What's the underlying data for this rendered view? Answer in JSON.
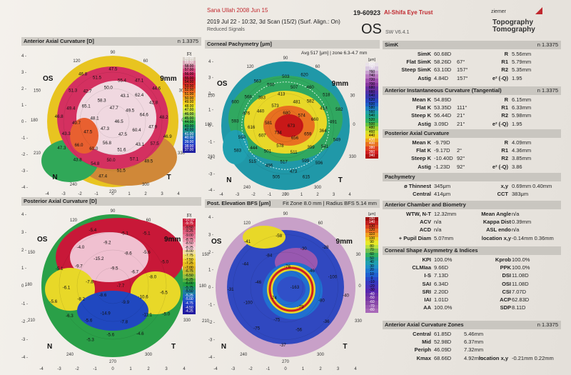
{
  "header": {
    "patient": "Sana Ullah 2008 Jun 15",
    "exam_id": "19-60923",
    "clinic": "Al-Shifa Eye Trust",
    "exam_datetime": "2019 Jul 22 - 10:32, 3d Scan (15/2) (Surf. Align.: On)",
    "signals": "Reduced Signals",
    "eye": "OS",
    "sw_version": "SW V6.4.1",
    "brand": "ziemer",
    "product_line1": "Topography",
    "product_line2": "Tomography"
  },
  "maps": {
    "ant_axial": {
      "title": "Anterior Axial Curvature [D]",
      "right": "n 1.3375",
      "eye": "OS",
      "size": "9mm",
      "scale_unit": "[D]",
      "scale": [
        "60.00",
        "59.00",
        "58.00",
        "57.00",
        "56.00",
        "55.00",
        "54.00",
        "53.00",
        "52.00",
        "51.00",
        "50.00",
        "49.00",
        "48.00",
        "47.00",
        "46.00",
        "45.00",
        "44.00",
        "43.00",
        "42.00",
        "41.00",
        "40.00",
        "39.00",
        "38.00",
        "37.00"
      ],
      "values": [
        "46.5",
        "47.3",
        "47.7",
        "47.5",
        "48.1",
        "49.5",
        "56.8",
        "58.3",
        "60.4",
        "47.5",
        "43.1",
        "51.6",
        "65.1",
        "64.6",
        "60.0",
        "50.0",
        "43.1",
        "49.7",
        "62.4",
        "50.0",
        "42.7",
        "47.9",
        "66.0",
        "55.4",
        "57.1",
        "49.4",
        "42.8",
        "54.8",
        "51.5",
        "57.5",
        "43.3",
        "47.1",
        "51.5",
        "51.3",
        "48.2",
        "43.8",
        "47.5",
        "49.5",
        "46.8",
        "44.6",
        "47.4",
        "46.8",
        "46.9",
        "47.3"
      ]
    },
    "pachy": {
      "title": "Corneal Pachymetry [μm]",
      "mid": "Avg 517 [μm] | zone 6.3-4.7 mm",
      "eye": "OS",
      "size": "9mm",
      "scale_unit": "[μm]",
      "scale": [
        "800",
        "780",
        "760",
        "740",
        "720",
        "700",
        "680",
        "660",
        "640",
        "620",
        "600",
        "580",
        "560",
        "540",
        "520",
        "500",
        "480",
        "460",
        "440",
        "420",
        "400",
        "380",
        "360",
        "340"
      ],
      "values": [
        "673",
        "734",
        "680",
        "656",
        "581",
        "574",
        "578",
        "573",
        "659",
        "607",
        "481",
        "511",
        "440",
        "660",
        "501",
        "413",
        "399",
        "616",
        "582",
        "517",
        "383",
        "364",
        "444",
        "507",
        "599",
        "476",
        "413",
        "486",
        "500",
        "541",
        "590",
        "460",
        "473",
        "568",
        "491",
        "515",
        "503",
        "596",
        "593",
        "518",
        "505",
        "563",
        "549",
        "583",
        "620",
        "615",
        "600",
        "582"
      ]
    },
    "post_axial": {
      "title": "Posterior Axial Curvature [D]",
      "right": "n 1.3375",
      "eye": "OS",
      "size": "9mm",
      "scale_unit": "[D]",
      "scale": [
        "-10.00",
        "-9.75",
        "-9.50",
        "-9.25",
        "-9.00",
        "-8.75",
        "-8.50",
        "-8.25",
        "-8.00",
        "-7.75",
        "-7.50",
        "-7.25",
        "-7.00",
        "-6.75",
        "-6.50",
        "-6.25",
        "-6.00",
        "-5.75",
        "-5.50",
        "-5.25",
        "-5.00",
        "-4.75",
        "-4.50",
        "-4.25"
      ],
      "values": [
        "-7.7",
        "-8.6",
        "-9.5",
        "-9.9",
        "-7.8",
        "-6.7",
        "-14.9",
        "-15.2",
        "-10.6",
        "-8.2",
        "-8.6",
        "-7.8",
        "-9.7",
        "-8.0",
        "-5.6",
        "-9.2",
        "-11.1",
        "-6.1",
        "-5.6",
        "-5.6",
        "-4.0",
        "-6.5",
        "-6.3",
        "-5.1",
        "-4.6",
        "-5.1",
        "-5.0",
        "-5.3",
        "-5.4",
        "-5.0",
        "-5.6",
        "-5.1"
      ]
    },
    "elev": {
      "title": "Post. Elevation BFS [μm]",
      "mid": "Fit Zone 8.0 mm | Radius BFS 5.14 mm",
      "eye": "OS",
      "size": "9mm",
      "scale_unit": "[μm]",
      "scale": [
        "150",
        "140",
        "130",
        "120",
        "110",
        "100",
        "90",
        "80",
        "70",
        "60",
        "50",
        "40",
        "30",
        "20",
        "10",
        "0",
        "-10",
        "-20",
        "-30",
        "-40",
        "-50",
        "-60",
        "-70",
        "-80"
      ],
      "values": [
        "-163",
        "-74",
        "-76",
        "-79",
        "-46",
        "-46",
        "-75",
        "-84",
        "-80",
        "-100",
        "-30",
        "-56",
        "-44",
        "-100",
        "-75",
        "-58",
        "-36",
        "-31",
        "-28",
        "-37",
        "-41",
        "-40"
      ]
    }
  },
  "panel": {
    "simk": {
      "title": "SimK",
      "n": "n 1.3375",
      "rows": [
        [
          "SimK",
          "60.68D",
          "",
          "R",
          "5.56mm"
        ],
        [
          "Flat SimK",
          "58.26D",
          "67°",
          "R1",
          "5.79mm"
        ],
        [
          "Steep SimK",
          "63.10D",
          "157°",
          "R2",
          "5.35mm"
        ],
        [
          "Astig",
          "4.84D",
          "157°",
          "e² (-Q)",
          "1.95"
        ]
      ]
    },
    "ant_inst": {
      "title": "Anterior Instantaneous Curvature (Tangential)",
      "n": "n 1.3375",
      "rows": [
        [
          "Mean K",
          "54.89D",
          "",
          "R",
          "6.15mm"
        ],
        [
          "Flat K",
          "53.35D",
          "111°",
          "R1",
          "6.33mm"
        ],
        [
          "Steep K",
          "56.44D",
          "21°",
          "R2",
          "5.98mm"
        ],
        [
          "Astig",
          "3.09D",
          "21°",
          "e² (-Q)",
          "1.95"
        ]
      ]
    },
    "post_axial": {
      "title": "Posterior Axial Curvature",
      "rows": [
        [
          "Mean K",
          "-9.79D",
          "",
          "R",
          "4.09mm"
        ],
        [
          "Flat K",
          "-9.17D",
          "2°",
          "R1",
          "4.36mm"
        ],
        [
          "Steep K",
          "-10.40D",
          "92°",
          "R2",
          "3.85mm"
        ],
        [
          "Astig",
          "-1.23D",
          "92°",
          "e² (-Q)",
          "3.86"
        ]
      ]
    },
    "pachy": {
      "title": "Pachymetry",
      "rows": [
        [
          "ø Thinnest",
          "345μm",
          "",
          "x,y",
          "0.69mm  0.40mm"
        ],
        [
          "Central",
          "414μm",
          "",
          "CCT",
          "383μm"
        ]
      ]
    },
    "acb": {
      "title": "Anterior Chamber and Biometry",
      "rows": [
        [
          "WTW, N-T",
          "12.32mm",
          "",
          "Mean Angle",
          "n/a"
        ],
        [
          "ACV",
          "n/a",
          "",
          "Kappa Dist",
          "0.39mm"
        ],
        [
          "ACD",
          "n/a",
          "",
          "ASL endo",
          "n/a"
        ],
        [
          "+ Pupil Diam",
          "5.07mm",
          "",
          "location x,y",
          "-0.14mm  0.36mm"
        ]
      ]
    },
    "csa": {
      "title": "Corneal Shape Asymmetry & Indices",
      "rows": [
        [
          "KPI",
          "100.0%",
          "",
          "Kprob",
          "100.0%"
        ],
        [
          "CLMIaa",
          "9.66D",
          "",
          "PPK",
          "100.0%"
        ],
        [
          "I-S",
          "7.13D",
          "",
          "DSI",
          "11.08D"
        ],
        [
          "SAI",
          "6.34D",
          "",
          "OSI",
          "11.08D"
        ],
        [
          "SRI",
          "2.20D",
          "",
          "CSI",
          "7.07D"
        ],
        [
          "IAI",
          "1.01D",
          "",
          "ACP",
          "62.83D"
        ],
        [
          "AA",
          "100.0%",
          "",
          "SDP",
          "8.11D"
        ]
      ]
    },
    "zones": {
      "title": "Anterior Axial Curvature Zones",
      "n": "n 1.3375",
      "rows": [
        [
          "Central",
          "61.85D",
          "5.46mm",
          "",
          ""
        ],
        [
          "Mid",
          "52.98D",
          "6.37mm",
          "",
          ""
        ],
        [
          "Periph",
          "46.09D",
          "7.32mm",
          "",
          ""
        ],
        [
          "Kmax",
          "68.66D",
          "4.92mm",
          "location x,y",
          "-0.21mm  0.22mm"
        ]
      ]
    }
  },
  "colors": {
    "accent_red": "#c0282e",
    "section_bar": "#c9c6c0"
  }
}
